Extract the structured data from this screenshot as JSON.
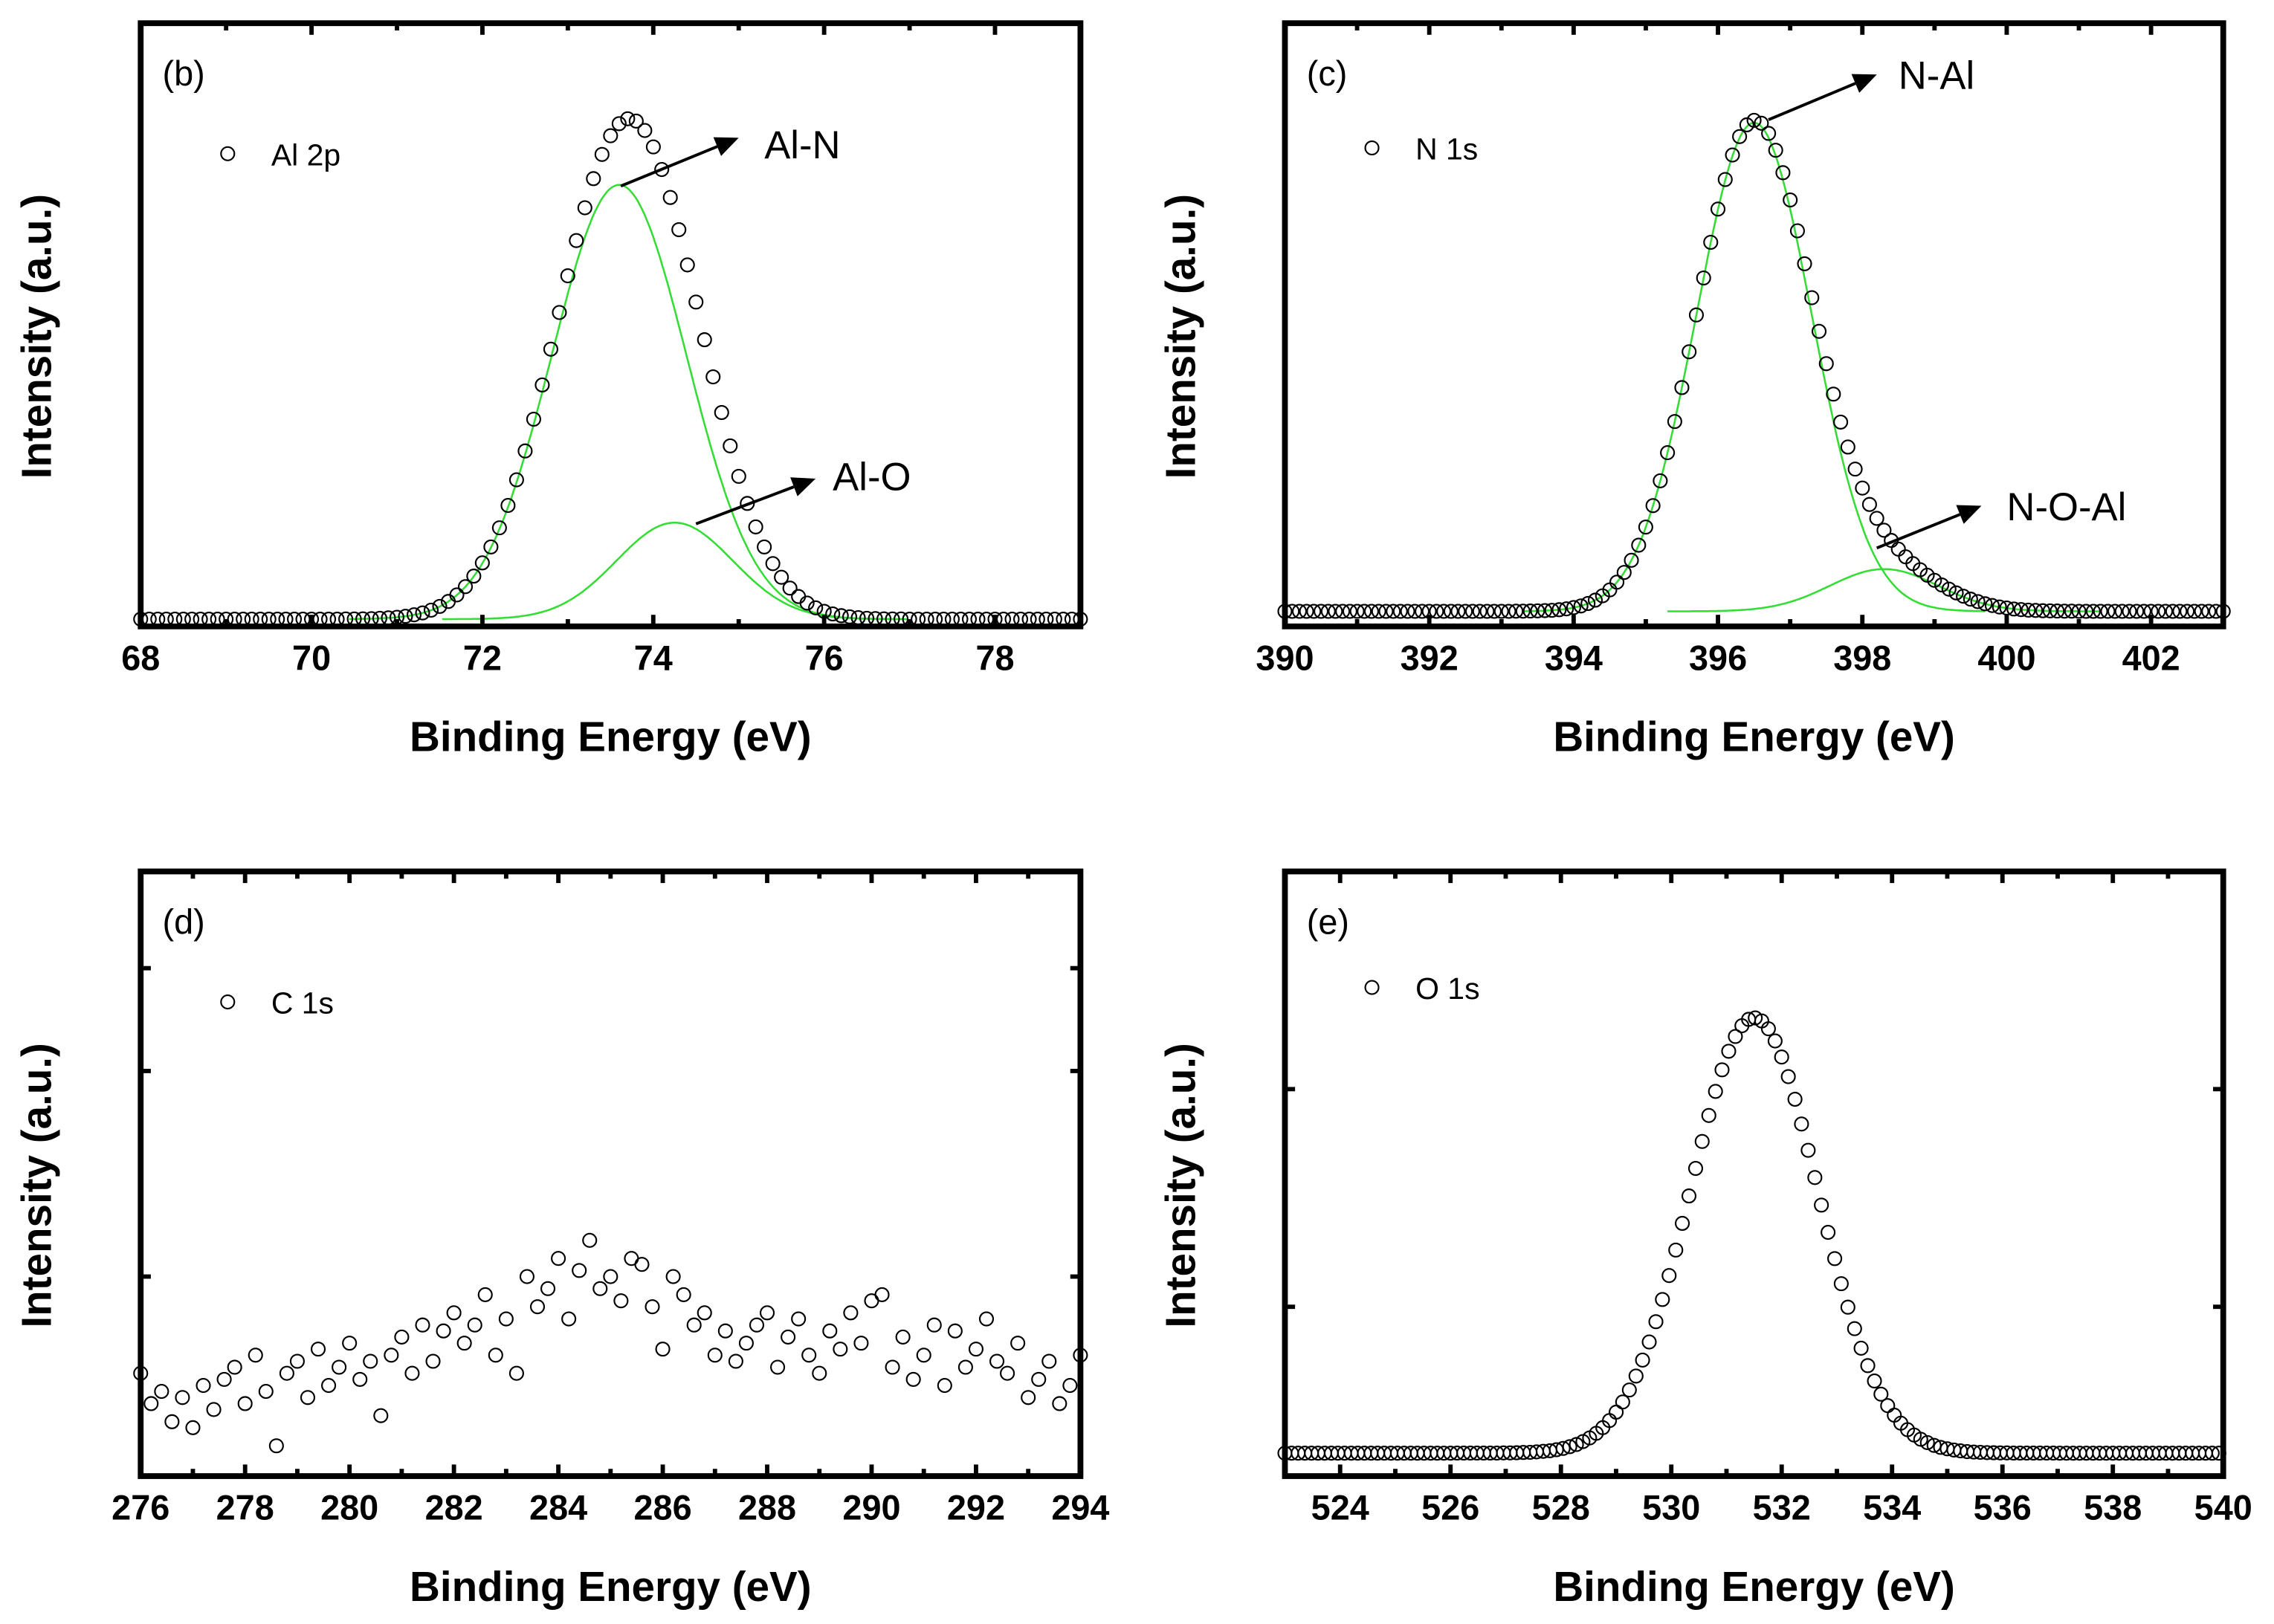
{
  "chart_data": [
    {
      "type": "scatter",
      "panel_label": "(b)",
      "xlabel": "Binding Energy (eV)",
      "ylabel": "Intensity (a.u.)",
      "xlim": [
        68,
        79
      ],
      "ylim": [
        0,
        1
      ],
      "xticks": [
        68,
        70,
        72,
        74,
        76,
        78
      ],
      "legend": {
        "label": "Al 2p",
        "placement": "top-left"
      },
      "data_model": {
        "x_start": 68,
        "x_end": 79,
        "step": 0.1,
        "baseline": 0.012
      },
      "fit_components": [
        {
          "name": "Al-N",
          "center": 73.6,
          "sigma": 0.79,
          "amplitude": 0.72,
          "color": "#33dd33"
        },
        {
          "name": "Al-O",
          "center": 74.25,
          "sigma": 0.68,
          "amplitude": 0.16,
          "color": "#33dd33"
        }
      ],
      "annotations": [
        {
          "text": "Al-N",
          "from": [
            73.62,
            0.73
          ],
          "to": [
            75.0,
            0.81
          ],
          "label_at": [
            75.3,
            0.8
          ]
        },
        {
          "text": "Al-O",
          "from": [
            74.5,
            0.17
          ],
          "to": [
            75.9,
            0.245
          ],
          "label_at": [
            76.1,
            0.25
          ]
        }
      ]
    },
    {
      "type": "scatter",
      "panel_label": "(c)",
      "xlabel": "Binding Energy (eV)",
      "ylabel": "Intensity (a.u.)",
      "xlim": [
        390,
        403
      ],
      "ylim": [
        0,
        1
      ],
      "xticks": [
        390,
        392,
        394,
        396,
        398,
        400,
        402
      ],
      "legend": {
        "label": "N 1s",
        "placement": "top-left"
      },
      "data_model": {
        "x_start": 390,
        "x_end": 403,
        "step": 0.1,
        "baseline": 0.025
      },
      "fit_components": [
        {
          "name": "N-Al",
          "center": 396.5,
          "sigma": 0.8,
          "amplitude": 0.81,
          "color": "#33dd33"
        },
        {
          "name": "N-O-Al",
          "center": 398.3,
          "sigma": 0.75,
          "amplitude": 0.07,
          "color": "#33dd33"
        }
      ],
      "annotations": [
        {
          "text": "N-Al",
          "from": [
            396.7,
            0.84
          ],
          "to": [
            398.2,
            0.915
          ],
          "label_at": [
            398.5,
            0.915
          ]
        },
        {
          "text": "N-O-Al",
          "from": [
            398.2,
            0.13
          ],
          "to": [
            399.65,
            0.2
          ],
          "label_at": [
            400.0,
            0.2
          ]
        }
      ]
    },
    {
      "type": "scatter",
      "panel_label": "(d)",
      "xlabel": "Binding Energy (eV)",
      "ylabel": "Intensity (a.u.)",
      "xlim": [
        276,
        294
      ],
      "ylim": [
        0,
        1
      ],
      "xticks": [
        276,
        278,
        280,
        282,
        284,
        286,
        288,
        290,
        292,
        294
      ],
      "legend": {
        "label": "C 1s",
        "placement": "top-left"
      },
      "x_start": 276,
      "step": 0.2,
      "y": [
        0.17,
        0.12,
        0.14,
        0.09,
        0.13,
        0.08,
        0.15,
        0.11,
        0.16,
        0.18,
        0.12,
        0.2,
        0.14,
        0.05,
        0.17,
        0.19,
        0.13,
        0.21,
        0.15,
        0.18,
        0.22,
        0.16,
        0.19,
        0.1,
        0.2,
        0.23,
        0.17,
        0.25,
        0.19,
        0.24,
        0.27,
        0.22,
        0.25,
        0.3,
        0.2,
        0.26,
        0.17,
        0.33,
        0.28,
        0.31,
        0.36,
        0.26,
        0.34,
        0.39,
        0.31,
        0.33,
        0.29,
        0.36,
        0.35,
        0.28,
        0.21,
        0.33,
        0.3,
        0.25,
        0.27,
        0.2,
        0.24,
        0.19,
        0.22,
        0.25,
        0.27,
        0.18,
        0.23,
        0.26,
        0.2,
        0.17,
        0.24,
        0.21,
        0.27,
        0.22,
        0.29,
        0.3,
        0.18,
        0.23,
        0.16,
        0.2,
        0.25,
        0.15,
        0.24,
        0.18,
        0.21,
        0.26,
        0.19,
        0.17,
        0.22,
        0.13,
        0.16,
        0.19,
        0.12,
        0.15,
        0.2
      ]
    },
    {
      "type": "scatter",
      "panel_label": "(e)",
      "xlabel": "Binding Energy (eV)",
      "ylabel": "Intensity (a.u.)",
      "xlim": [
        523,
        540
      ],
      "ylim": [
        0,
        1
      ],
      "xticks": [
        524,
        526,
        528,
        530,
        532,
        534,
        536,
        538,
        540
      ],
      "legend": {
        "label": "O 1s",
        "placement": "top-left"
      },
      "data_model": {
        "x_start": 523,
        "x_end": 540,
        "step": 0.12,
        "baseline": 0.038
      },
      "peak": {
        "center": 531.5,
        "sigma": 1.15,
        "amplitude": 0.72
      }
    }
  ]
}
